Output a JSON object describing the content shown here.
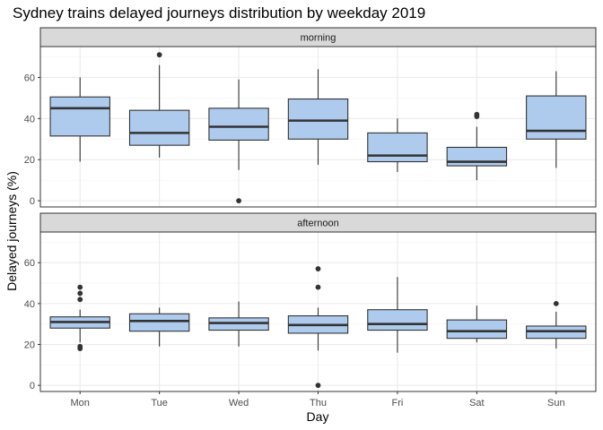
{
  "chart_data": {
    "type": "boxplot",
    "title": "Sydney trains delayed journeys distribution by weekday 2019",
    "xlabel": "Day",
    "ylabel": "Delayed journeys (%)",
    "categories": [
      "Mon",
      "Tue",
      "Wed",
      "Thu",
      "Fri",
      "Sat",
      "Sun"
    ],
    "yticks": [
      0,
      20,
      40,
      60
    ],
    "ylim": [
      -3,
      75
    ],
    "grid": true,
    "colors": {
      "box_fill": "#aecbee",
      "box_stroke": "#333333",
      "median": "#333333",
      "strip_bg": "#d9d9d9",
      "grid_major": "#ebebeb",
      "grid_minor": "#f5f5f5",
      "panel_border": "#333333"
    },
    "panels": [
      {
        "label": "morning",
        "boxes": [
          {
            "lower_whisker": 19,
            "q1": 31.5,
            "median": 45,
            "q3": 50.5,
            "upper_whisker": 60,
            "outliers": []
          },
          {
            "lower_whisker": 21,
            "q1": 27,
            "median": 33,
            "q3": 44,
            "upper_whisker": 66,
            "outliers": [
              71
            ]
          },
          {
            "lower_whisker": 15,
            "q1": 29.5,
            "median": 36,
            "q3": 45,
            "upper_whisker": 59,
            "outliers": [
              0
            ]
          },
          {
            "lower_whisker": 17.5,
            "q1": 30,
            "median": 39,
            "q3": 49.5,
            "upper_whisker": 64,
            "outliers": []
          },
          {
            "lower_whisker": 14,
            "q1": 19,
            "median": 22,
            "q3": 33,
            "upper_whisker": 40,
            "outliers": []
          },
          {
            "lower_whisker": 10,
            "q1": 17,
            "median": 19,
            "q3": 26,
            "upper_whisker": 36,
            "outliers": [
              41,
              42
            ]
          },
          {
            "lower_whisker": 16,
            "q1": 30,
            "median": 34,
            "q3": 51,
            "upper_whisker": 63,
            "outliers": []
          }
        ]
      },
      {
        "label": "afternoon",
        "boxes": [
          {
            "lower_whisker": 21,
            "q1": 28,
            "median": 31,
            "q3": 33.5,
            "upper_whisker": 37,
            "outliers": [
              18,
              19,
              42,
              45,
              48
            ]
          },
          {
            "lower_whisker": 19,
            "q1": 26.5,
            "median": 31.5,
            "q3": 35,
            "upper_whisker": 38,
            "outliers": []
          },
          {
            "lower_whisker": 19,
            "q1": 27,
            "median": 30.5,
            "q3": 33,
            "upper_whisker": 41,
            "outliers": []
          },
          {
            "lower_whisker": 17,
            "q1": 25.5,
            "median": 29.5,
            "q3": 34,
            "upper_whisker": 38,
            "outliers": [
              0,
              48,
              57
            ]
          },
          {
            "lower_whisker": 16,
            "q1": 27,
            "median": 30,
            "q3": 37,
            "upper_whisker": 53,
            "outliers": []
          },
          {
            "lower_whisker": 21,
            "q1": 23,
            "median": 26.5,
            "q3": 32,
            "upper_whisker": 39,
            "outliers": []
          },
          {
            "lower_whisker": 18,
            "q1": 23,
            "median": 26.5,
            "q3": 29,
            "upper_whisker": 36,
            "outliers": [
              40
            ]
          }
        ]
      }
    ]
  }
}
